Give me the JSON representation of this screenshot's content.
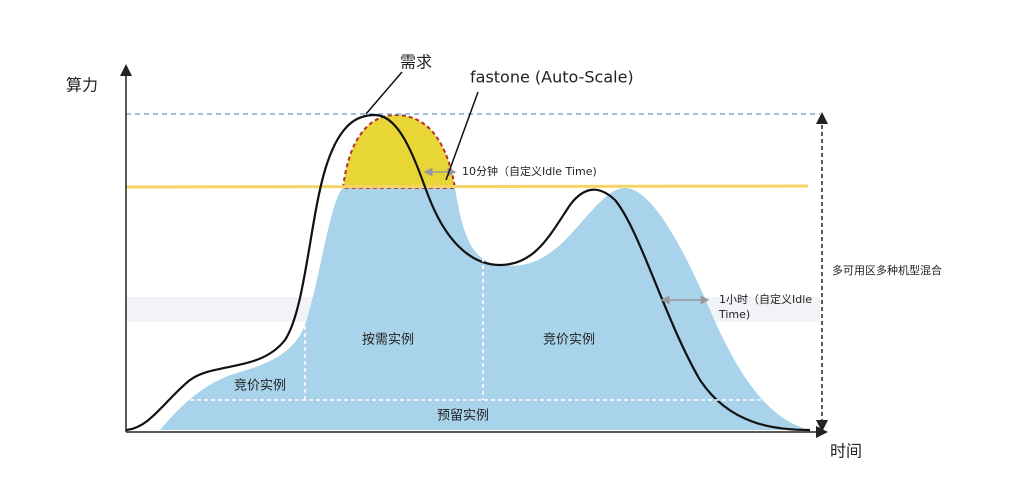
{
  "axes": {
    "y_label": "算力",
    "x_label": "时间"
  },
  "callouts": {
    "demand": "需求",
    "autoscale": "fastone (Auto-Scale)",
    "idle_short": "10分钟（自定义Idle Time)",
    "idle_long_line1": "1小时（自定义Idle",
    "idle_long_line2": "Time)",
    "mix": "多可用区多种机型混合"
  },
  "regions": {
    "spot_left": "竞价实例",
    "on_demand": "按需实例",
    "spot_right": "竞价实例",
    "reserved": "预留实例"
  }
}
